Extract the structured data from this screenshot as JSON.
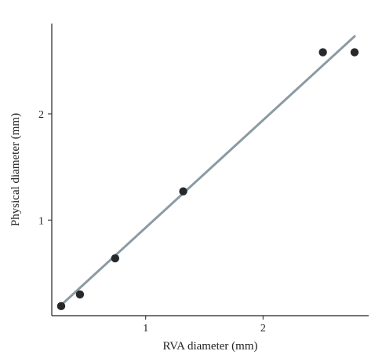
{
  "chart_data": {
    "type": "scatter",
    "title": "",
    "xlabel": "RVA diameter (mm)",
    "ylabel": "Physical diameter (mm)",
    "xlim": [
      0.2,
      2.9
    ],
    "ylim": [
      0.1,
      2.85
    ],
    "xticks": [
      1,
      2
    ],
    "yticks": [
      1,
      2
    ],
    "grid": false,
    "series": [
      {
        "x": [
          0.28,
          0.44,
          0.74,
          1.32,
          2.51,
          2.78
        ],
        "y": [
          0.19,
          0.3,
          0.64,
          1.27,
          2.58,
          2.58
        ],
        "color": "#262a2c"
      }
    ],
    "fit_line": {
      "x": [
        0.28,
        2.78
      ],
      "y": [
        0.2,
        2.73
      ],
      "color": "#8c9ba3"
    }
  }
}
